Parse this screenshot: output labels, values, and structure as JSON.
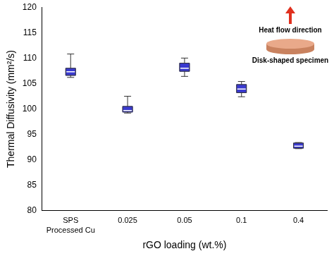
{
  "chart_data": {
    "type": "box",
    "x_label": "rGO loading (wt.%)",
    "y_label": "Thermal Diffusivity (mm²/s)",
    "categories": [
      "SPS Processed Cu",
      "0.025",
      "0.05",
      "0.1",
      "0.4"
    ],
    "min": [
      106.2,
      99.2,
      106.4,
      102.4,
      92.2
    ],
    "q1": [
      106.6,
      99.4,
      107.4,
      103.2,
      92.3
    ],
    "median": [
      107.3,
      99.7,
      108.0,
      103.9,
      92.7
    ],
    "q3": [
      108.0,
      100.5,
      109.0,
      104.8,
      93.3
    ],
    "max": [
      110.8,
      102.5,
      110.0,
      105.4,
      93.4
    ],
    "color": "#3a3ad0",
    "ylim": [
      80,
      120
    ],
    "yticks": [
      80,
      85,
      90,
      95,
      100,
      105,
      110,
      115,
      120
    ],
    "grid": false,
    "annotations": [
      "Heat flow direction",
      "Disk-shaped specimen"
    ]
  }
}
